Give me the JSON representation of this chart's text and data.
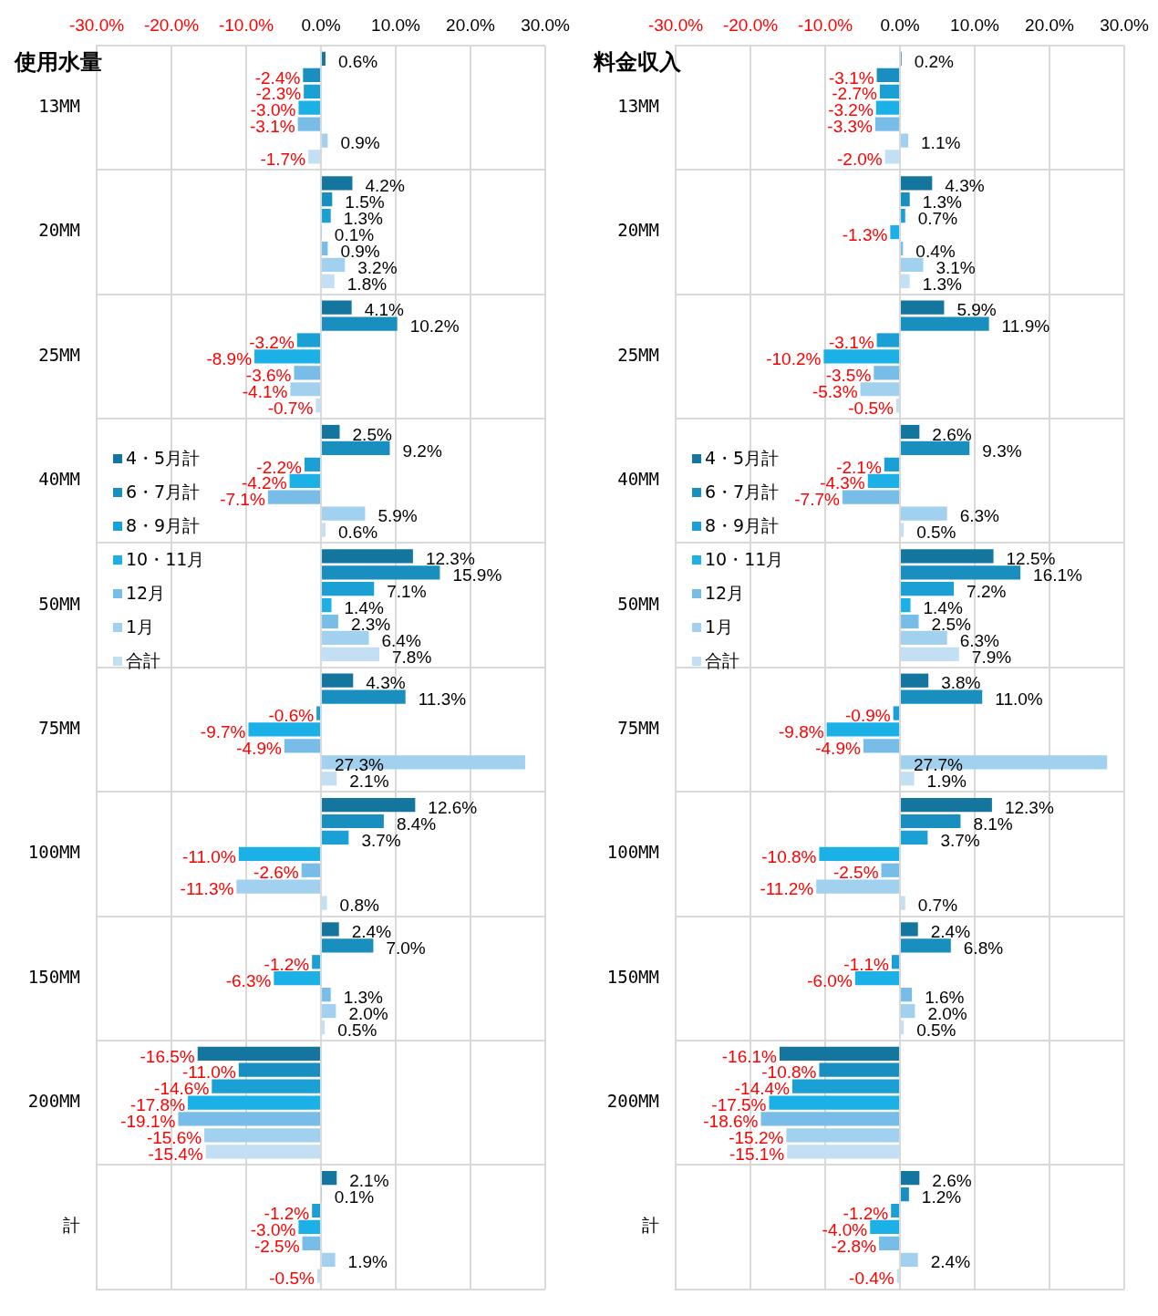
{
  "chart_data": [
    {
      "type": "bar",
      "orientation": "horizontal",
      "title": "使用水量",
      "categories": [
        "13MM",
        "20MM",
        "25MM",
        "40MM",
        "50MM",
        "75MM",
        "100MM",
        "150MM",
        "200MM",
        "計"
      ],
      "xlim": [
        -30,
        30
      ],
      "xticks": [
        {
          "value": -30,
          "label": "-30.0%"
        },
        {
          "value": -20,
          "label": "-20.0%"
        },
        {
          "value": -10,
          "label": "-10.0%"
        },
        {
          "value": 0,
          "label": "0.0%"
        },
        {
          "value": 10,
          "label": "10.0%"
        },
        {
          "value": 20,
          "label": "20.0%"
        },
        {
          "value": 30,
          "label": "30.0%"
        }
      ],
      "grid": true,
      "legend": "left",
      "series": [
        {
          "name": "4・5月計",
          "color": "#14769e",
          "values": [
            0.6,
            4.2,
            4.1,
            2.5,
            12.3,
            4.3,
            12.6,
            2.4,
            -16.5,
            2.1
          ],
          "value_labels": [
            "0.6%",
            "4.2%",
            "4.1%",
            "2.5%",
            "12.3%",
            "4.3%",
            "12.6%",
            "2.4%",
            "-16.5%",
            "2.1%"
          ]
        },
        {
          "name": "6・7月計",
          "color": "#188fbe",
          "values": [
            -2.4,
            1.5,
            10.2,
            9.2,
            15.9,
            11.3,
            8.4,
            7.0,
            -11.0,
            0.1
          ],
          "value_labels": [
            "-2.4%",
            "1.5%",
            "10.2%",
            "9.2%",
            "15.9%",
            "11.3%",
            "8.4%",
            "7.0%",
            "-11.0%",
            "0.1%"
          ]
        },
        {
          "name": "8・9月計",
          "color": "#1aa0d4",
          "values": [
            -2.3,
            1.3,
            -3.2,
            -2.2,
            7.1,
            -0.6,
            3.7,
            -1.2,
            -14.6,
            -1.2
          ],
          "value_labels": [
            "-2.3%",
            "1.3%",
            "-3.2%",
            "-2.2%",
            "7.1%",
            "-0.6%",
            "3.7%",
            "-1.2%",
            "-14.6%",
            "-1.2%"
          ]
        },
        {
          "name": "10・11月",
          "color": "#1cb1e6",
          "values": [
            -3.0,
            0.1,
            -8.9,
            -4.2,
            1.4,
            -9.7,
            -11.0,
            -6.3,
            -17.8,
            -3.0
          ],
          "value_labels": [
            "-3.0%",
            "0.1%",
            "-8.9%",
            "-4.2%",
            "1.4%",
            "-9.7%",
            "-11.0%",
            "-6.3%",
            "-17.8%",
            "-3.0%"
          ]
        },
        {
          "name": "12月",
          "color": "#78bde8",
          "values": [
            -3.1,
            0.9,
            -3.6,
            -7.1,
            2.3,
            -4.9,
            -2.6,
            1.3,
            -19.1,
            -2.5
          ],
          "value_labels": [
            "-3.1%",
            "0.9%",
            "-3.6%",
            "-7.1%",
            "2.3%",
            "-4.9%",
            "-2.6%",
            "1.3%",
            "-19.1%",
            "-2.5%"
          ]
        },
        {
          "name": "1月",
          "color": "#a2d0ef",
          "values": [
            0.9,
            3.2,
            -4.1,
            5.9,
            6.4,
            27.3,
            -11.3,
            2.0,
            -15.6,
            1.9
          ],
          "value_labels": [
            "0.9%",
            "3.2%",
            "-4.1%",
            "5.9%",
            "6.4%",
            "27.3%",
            "-11.3%",
            "2.0%",
            "-15.6%",
            "1.9%"
          ]
        },
        {
          "name": "合計",
          "color": "#c3dff3",
          "values": [
            -1.7,
            1.8,
            -0.7,
            0.6,
            7.8,
            2.1,
            0.8,
            0.5,
            -15.4,
            -0.5
          ],
          "value_labels": [
            "-1.7%",
            "1.8%",
            "-0.7%",
            "0.6%",
            "7.8%",
            "2.1%",
            "0.8%",
            "0.5%",
            "-15.4%",
            "-0.5%"
          ]
        }
      ]
    },
    {
      "type": "bar",
      "orientation": "horizontal",
      "title": "料金収入",
      "categories": [
        "13MM",
        "20MM",
        "25MM",
        "40MM",
        "50MM",
        "75MM",
        "100MM",
        "150MM",
        "200MM",
        "計"
      ],
      "xlim": [
        -30,
        30
      ],
      "xticks": [
        {
          "value": -30,
          "label": "-30.0%"
        },
        {
          "value": -20,
          "label": "-20.0%"
        },
        {
          "value": -10,
          "label": "-10.0%"
        },
        {
          "value": 0,
          "label": "0.0%"
        },
        {
          "value": 10,
          "label": "10.0%"
        },
        {
          "value": 20,
          "label": "20.0%"
        },
        {
          "value": 30,
          "label": "30.0%"
        }
      ],
      "grid": true,
      "legend": "left",
      "series": [
        {
          "name": "4・5月計",
          "color": "#14769e",
          "values": [
            0.2,
            4.3,
            5.9,
            2.6,
            12.5,
            3.8,
            12.3,
            2.4,
            -16.1,
            2.6
          ],
          "value_labels": [
            "0.2%",
            "4.3%",
            "5.9%",
            "2.6%",
            "12.5%",
            "3.8%",
            "12.3%",
            "2.4%",
            "-16.1%",
            "2.6%"
          ]
        },
        {
          "name": "6・7月計",
          "color": "#188fbe",
          "values": [
            -3.1,
            1.3,
            11.9,
            9.3,
            16.1,
            11.0,
            8.1,
            6.8,
            -10.8,
            1.2
          ],
          "value_labels": [
            "-3.1%",
            "1.3%",
            "11.9%",
            "9.3%",
            "16.1%",
            "11.0%",
            "8.1%",
            "6.8%",
            "-10.8%",
            "1.2%"
          ]
        },
        {
          "name": "8・9月計",
          "color": "#1aa0d4",
          "values": [
            -2.7,
            0.7,
            -3.1,
            -2.1,
            7.2,
            -0.9,
            3.7,
            -1.1,
            -14.4,
            -1.2
          ],
          "value_labels": [
            "-2.7%",
            "0.7%",
            "-3.1%",
            "-2.1%",
            "7.2%",
            "-0.9%",
            "3.7%",
            "-1.1%",
            "-14.4%",
            "-1.2%"
          ]
        },
        {
          "name": "10・11月",
          "color": "#1cb1e6",
          "values": [
            -3.2,
            -1.3,
            -10.2,
            -4.3,
            1.4,
            -9.8,
            -10.8,
            -6.0,
            -17.5,
            -4.0
          ],
          "value_labels": [
            "-3.2%",
            "-1.3%",
            "-10.2%",
            "-4.3%",
            "1.4%",
            "-9.8%",
            "-10.8%",
            "-6.0%",
            "-17.5%",
            "-4.0%"
          ]
        },
        {
          "name": "12月",
          "color": "#78bde8",
          "values": [
            -3.3,
            0.4,
            -3.5,
            -7.7,
            2.5,
            -4.9,
            -2.5,
            1.6,
            -18.6,
            -2.8
          ],
          "value_labels": [
            "-3.3%",
            "0.4%",
            "-3.5%",
            "-7.7%",
            "2.5%",
            "-4.9%",
            "-2.5%",
            "1.6%",
            "-18.6%",
            "-2.8%"
          ]
        },
        {
          "name": "1月",
          "color": "#a2d0ef",
          "values": [
            1.1,
            3.1,
            -5.3,
            6.3,
            6.3,
            27.7,
            -11.2,
            2.0,
            -15.2,
            2.4
          ],
          "value_labels": [
            "1.1%",
            "3.1%",
            "-5.3%",
            "6.3%",
            "6.3%",
            "27.7%",
            "-11.2%",
            "2.0%",
            "-15.2%",
            "2.4%"
          ]
        },
        {
          "name": "合計",
          "color": "#c3dff3",
          "values": [
            -2.0,
            1.3,
            -0.5,
            0.5,
            7.9,
            1.9,
            0.7,
            0.5,
            -15.1,
            -0.4
          ],
          "value_labels": [
            "-2.0%",
            "1.3%",
            "-0.5%",
            "0.5%",
            "7.9%",
            "1.9%",
            "0.7%",
            "0.5%",
            "-15.1%",
            "-0.4%"
          ]
        }
      ]
    }
  ]
}
